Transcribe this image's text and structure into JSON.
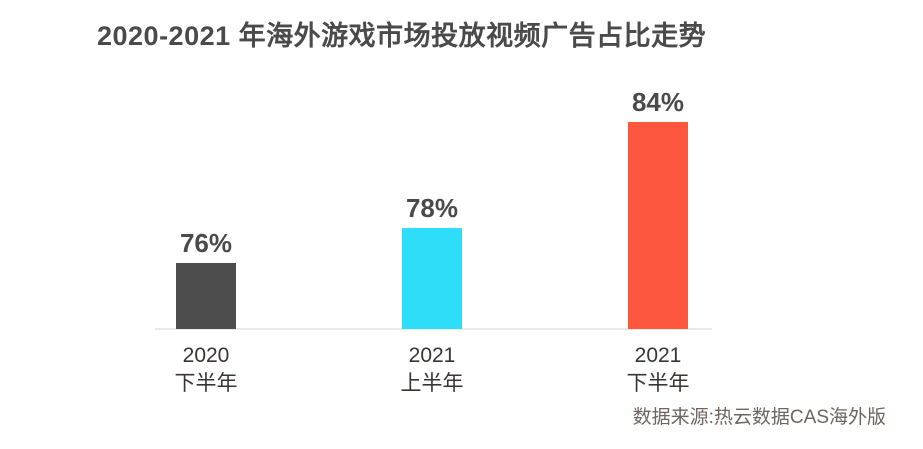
{
  "chart_data": {
    "type": "bar",
    "title": "2020-2021 年海外游戏市场投放视频广告占比走势",
    "categories": [
      [
        "2020",
        "下半年"
      ],
      [
        "2021",
        "上半年"
      ],
      [
        "2021",
        "下半年"
      ]
    ],
    "values": [
      76,
      78,
      84
    ],
    "value_labels": [
      "76%",
      "78%",
      "84%"
    ],
    "unit": "%",
    "colors": [
      "#4d4d4d",
      "#2edef8",
      "#fd5740"
    ],
    "ylim": [
      72.25,
      86
    ],
    "grid": false,
    "legend": false,
    "xlabel": "",
    "ylabel": "",
    "source": "数据来源:热云数据CAS海外版"
  },
  "style": {
    "background": "#ffffff",
    "title_color": "#4a4a4a",
    "value_label_color": "#4a4a4a",
    "category_label_color": "#3a3433",
    "source_color": "#6f6560",
    "axis_line_color": "#e9e9e9"
  }
}
